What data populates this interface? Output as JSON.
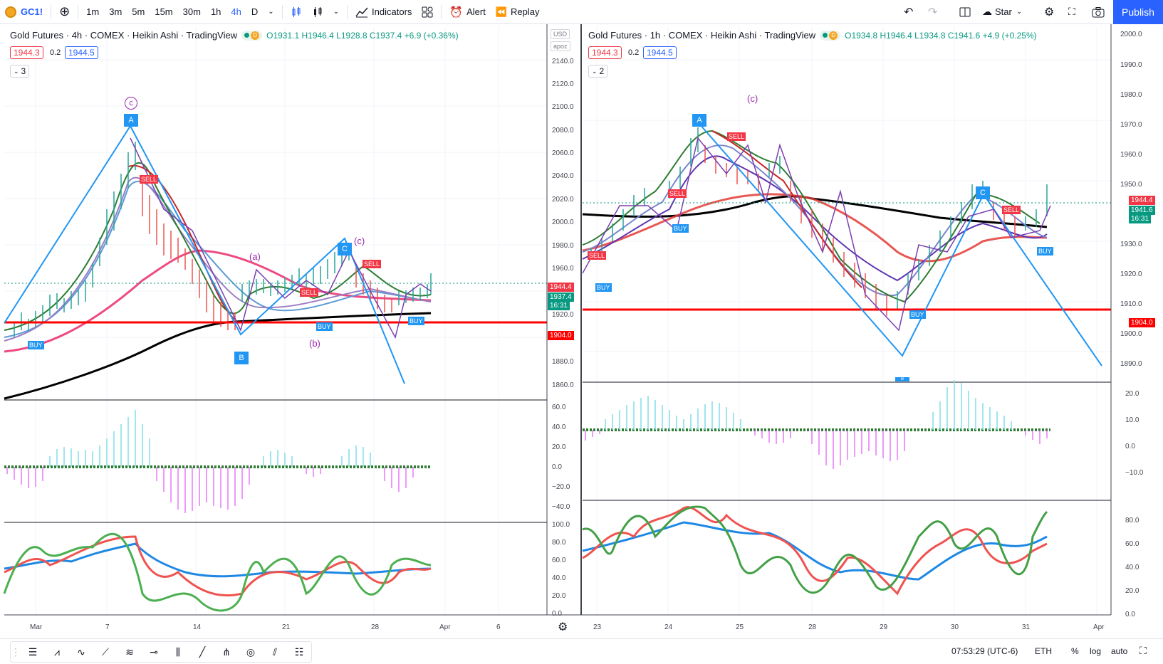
{
  "toolbar": {
    "symbol": "GC1!",
    "intervals": [
      "1m",
      "3m",
      "5m",
      "15m",
      "30m",
      "1h",
      "4h",
      "D"
    ],
    "active_interval": "4h",
    "indicators_label": "Indicators",
    "alert_label": "Alert",
    "replay_label": "Replay",
    "star_label": "Star",
    "publish_label": "Publish"
  },
  "left_chart": {
    "title": "Gold Futures · 4h · COMEX · Heikin Ashi · TradingView",
    "ohlc": "O1931.1 H1946.4 L1928.8 C1937.4 +6.9 (+0.36%)",
    "bid": "1944.3",
    "spread": "0.2",
    "ask": "1944.5",
    "collapse_count": "3",
    "currency": "USD",
    "scale_mode": "apoz",
    "price_axis": [
      "2140.0",
      "2120.0",
      "2100.0",
      "2080.0",
      "2060.0",
      "2040.0",
      "2020.0",
      "2000.0",
      "1980.0",
      "1960.0",
      "1940.0",
      "1920.0",
      "1900.0",
      "1880.0",
      "1860.0"
    ],
    "tags": {
      "last": "1944.4",
      "close": "1937.4",
      "countdown": "16:31",
      "line": "1904.0"
    },
    "osc_axis": [
      "60.0",
      "40.0",
      "20.0",
      "0.0",
      "−20.0",
      "−40.0"
    ],
    "rsi_axis": [
      "100.0",
      "80.0",
      "60.0",
      "40.0",
      "20.0",
      "0.0"
    ],
    "time_axis": [
      "Mar",
      "7",
      "14",
      "21",
      "28",
      "Apr",
      "6"
    ],
    "annotations": {
      "A": "A",
      "B": "B",
      "C": "C",
      "c_top": "c",
      "wave_a": "(a)",
      "wave_b": "(b)",
      "wave_c": "(c)",
      "sell": "SELL",
      "buy": "BUY"
    }
  },
  "right_chart": {
    "title": "Gold Futures · 1h · COMEX · Heikin Ashi · TradingView",
    "ohlc": "O1934.8 H1946.4 L1934.8 C1941.6 +4.9 (+0.25%)",
    "bid": "1944.3",
    "spread": "0.2",
    "ask": "1944.5",
    "collapse_count": "2",
    "price_axis": [
      "2000.0",
      "1990.0",
      "1980.0",
      "1970.0",
      "1960.0",
      "1950.0",
      "1940.0",
      "1930.0",
      "1920.0",
      "1910.0",
      "1900.0",
      "1890.0"
    ],
    "tags": {
      "last": "1944.4",
      "close": "1941.6",
      "countdown": "16:31",
      "line": "1904.0"
    },
    "osc_axis": [
      "20.0",
      "10.0",
      "0.0",
      "−10.0"
    ],
    "rsi_axis": [
      "80.0",
      "60.0",
      "40.0",
      "20.0",
      "0.0"
    ],
    "time_axis": [
      "23",
      "24",
      "25",
      "28",
      "29",
      "30",
      "31",
      "Apr"
    ],
    "annotations": {
      "A": "A",
      "B": "B",
      "C": "C",
      "wave_c": "(c)",
      "sell": "SELL",
      "buy": "BUY"
    }
  },
  "bottom": {
    "clock": "07:53:29 (UTC-6)",
    "session": "ETH",
    "percent": "%",
    "log": "log",
    "auto": "auto"
  },
  "colors": {
    "accent": "#2962ff",
    "up": "#089981",
    "down": "#f23645",
    "wave": "#2196f3",
    "support": "#ff0000"
  }
}
